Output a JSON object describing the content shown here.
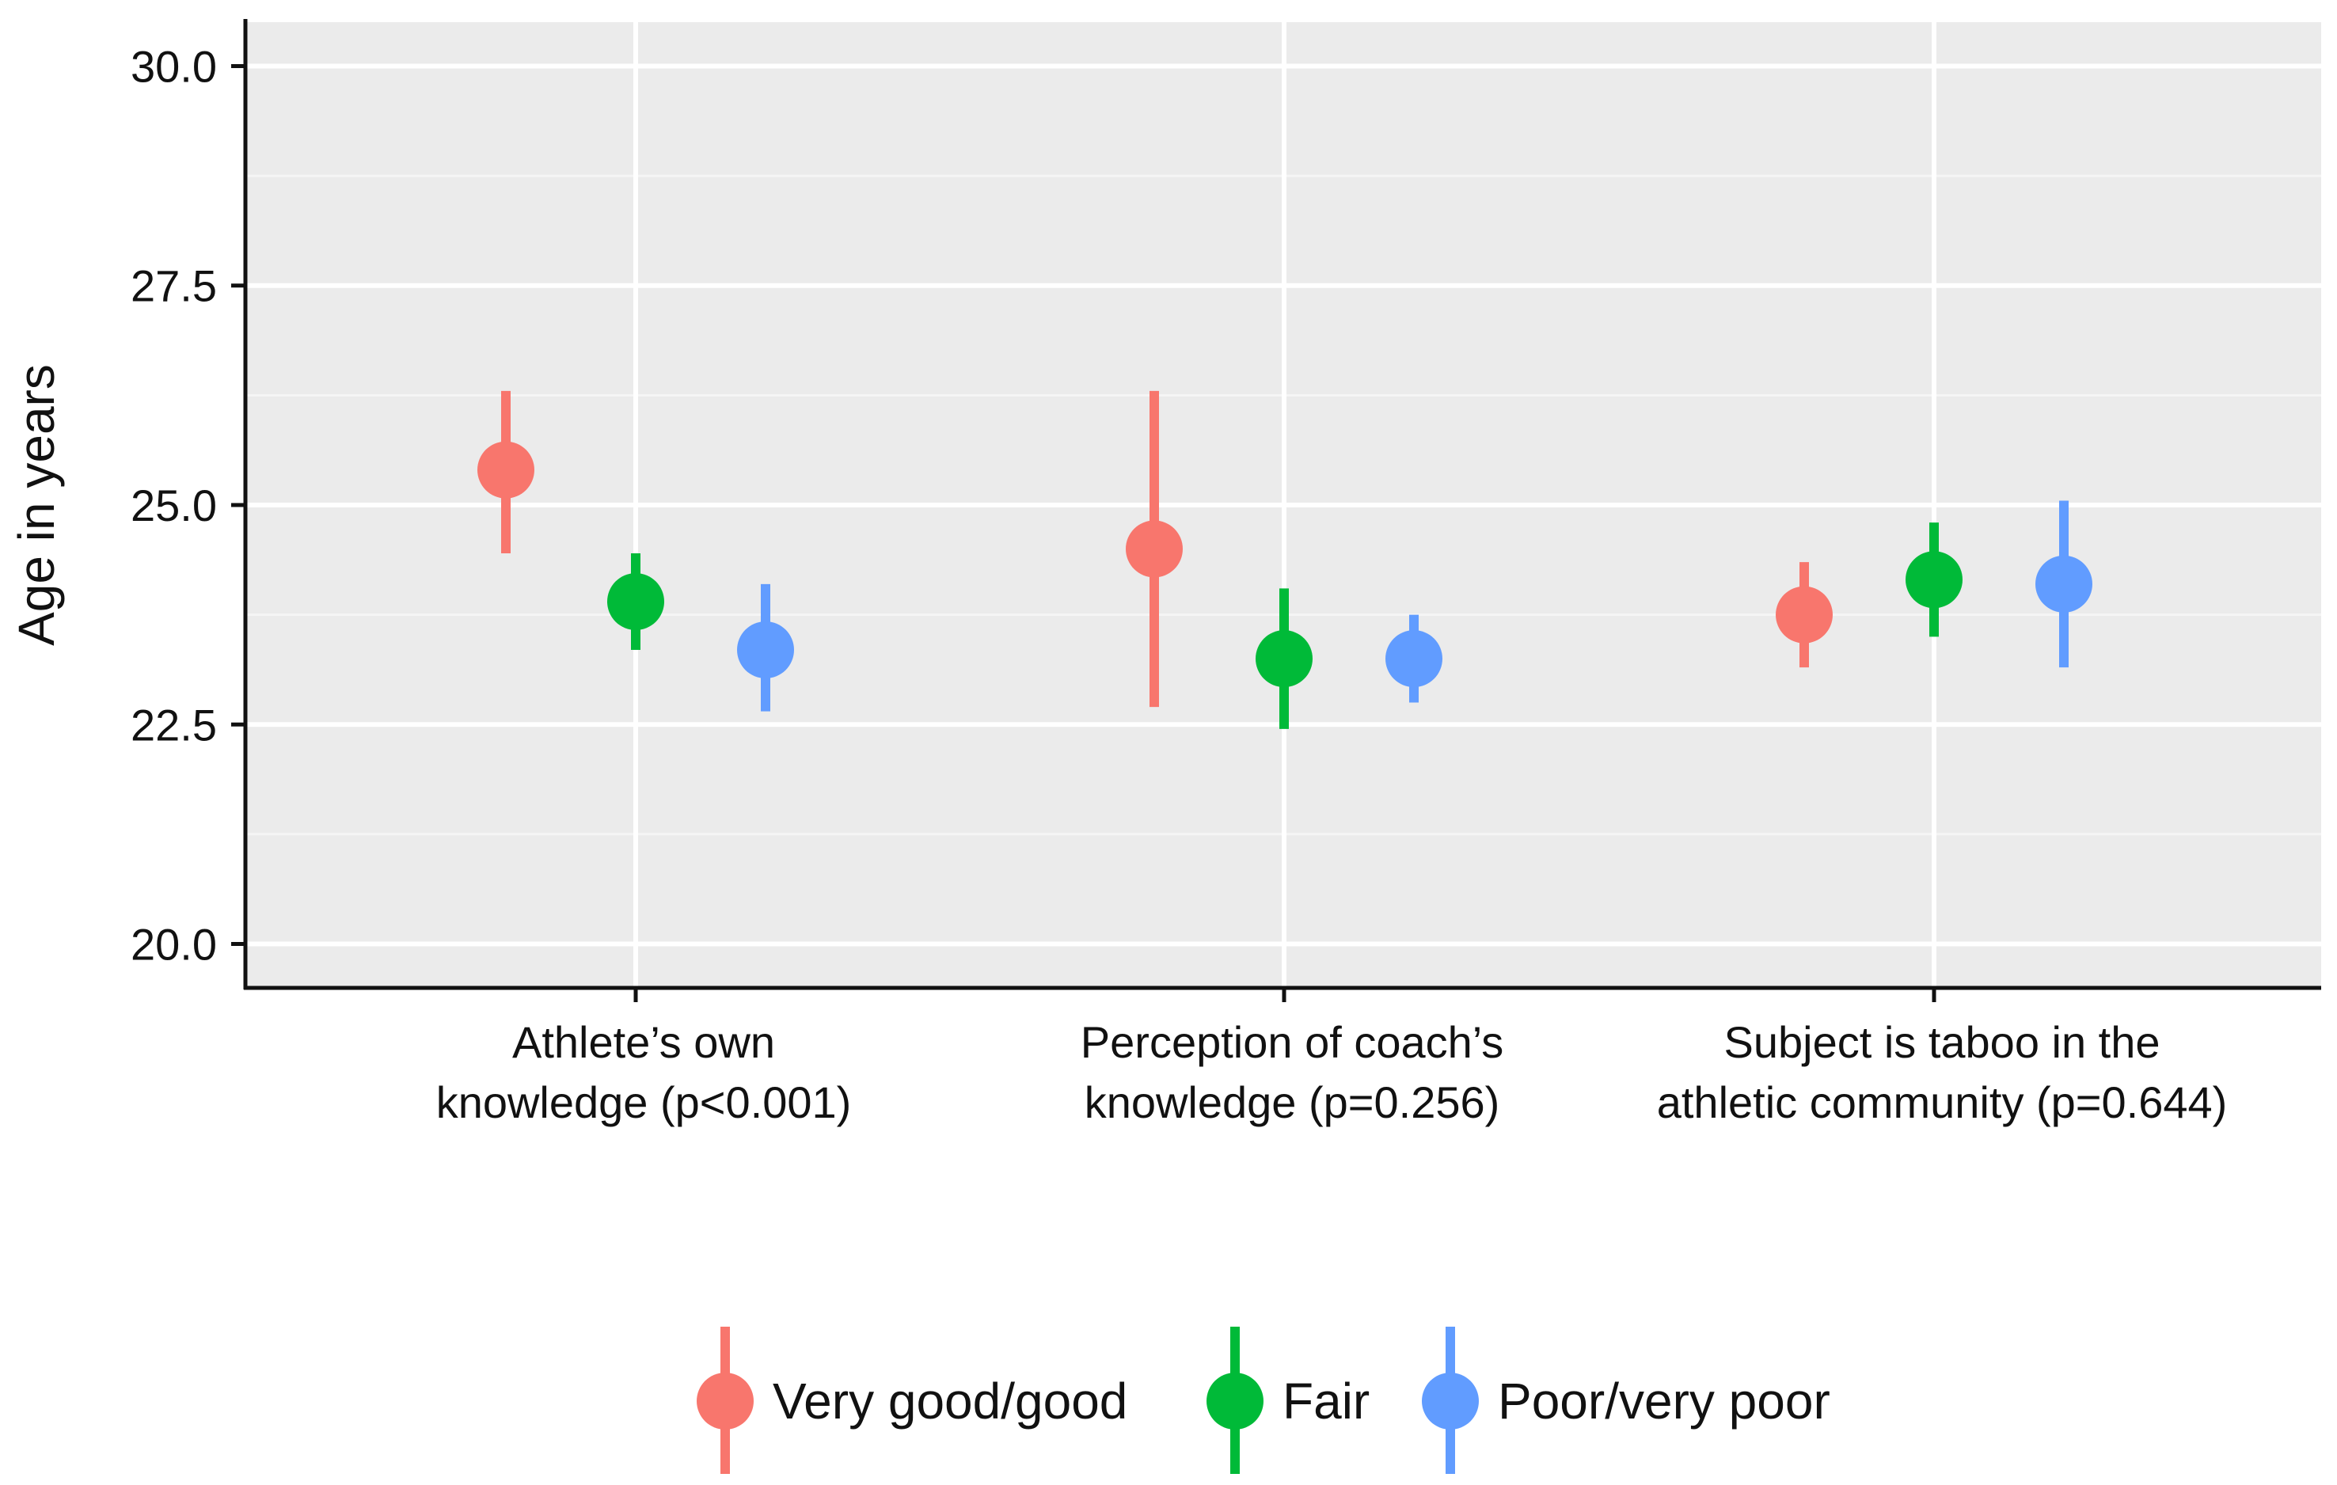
{
  "chart_data": {
    "type": "scatter",
    "title": "",
    "xlabel": "",
    "ylabel": "Age in years",
    "ylim": [
      19.5,
      30.5
    ],
    "yticks": [
      "20.0",
      "22.5",
      "25.0",
      "27.5",
      "30.0"
    ],
    "grid": true,
    "legend_position": "bottom",
    "categories": [
      [
        "Athlete’s own",
        "knowledge (p<0.001)"
      ],
      [
        "Perception of coach’s",
        "knowledge (p=0.256)"
      ],
      [
        "Subject is taboo in the",
        "athletic community (p=0.644)"
      ]
    ],
    "series": [
      {
        "name": "Very good/good",
        "color": "#F8766D",
        "points": [
          {
            "mean": 25.4,
            "lower": 24.45,
            "upper": 26.3
          },
          {
            "mean": 24.5,
            "lower": 22.7,
            "upper": 26.3
          },
          {
            "mean": 23.75,
            "lower": 23.15,
            "upper": 24.35
          }
        ]
      },
      {
        "name": "Fair",
        "color": "#00BA38",
        "points": [
          {
            "mean": 23.9,
            "lower": 23.35,
            "upper": 24.45
          },
          {
            "mean": 23.25,
            "lower": 22.45,
            "upper": 24.05
          },
          {
            "mean": 24.15,
            "lower": 23.5,
            "upper": 24.8
          }
        ]
      },
      {
        "name": "Poor/very poor",
        "color": "#619CFF",
        "points": [
          {
            "mean": 23.35,
            "lower": 22.65,
            "upper": 24.1
          },
          {
            "mean": 23.25,
            "lower": 22.75,
            "upper": 23.75
          },
          {
            "mean": 24.1,
            "lower": 23.15,
            "upper": 25.05
          }
        ]
      }
    ],
    "colors": {
      "panel_background": "#EBEBEB",
      "grid_major": "#FFFFFF",
      "grid_minor": "#F5F5F5",
      "axis": "#111111"
    }
  }
}
